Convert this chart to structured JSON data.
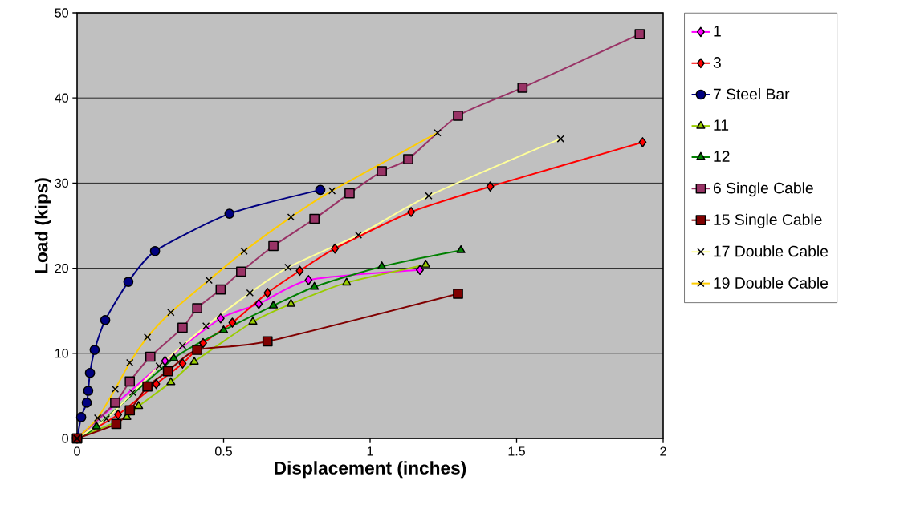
{
  "chart_data": {
    "type": "line",
    "xlabel": "Displacement (inches)",
    "ylabel": "Load (kips)",
    "xlim": [
      0,
      2
    ],
    "ylim": [
      0,
      50
    ],
    "xticks": [
      0,
      0.5,
      1,
      1.5,
      2
    ],
    "yticks": [
      0,
      10,
      20,
      30,
      40,
      50
    ],
    "grid": "y",
    "legend": "right",
    "series": [
      {
        "name": "1",
        "color": "#ff00ff",
        "marker": "diamond",
        "x": [
          0,
          0.3,
          0.49,
          0.62,
          0.79,
          1.17
        ],
        "values": [
          0,
          9.1,
          14.1,
          15.8,
          18.6,
          19.8
        ]
      },
      {
        "name": "3",
        "color": "#ff0000",
        "marker": "diamond",
        "x": [
          0,
          0.14,
          0.27,
          0.36,
          0.43,
          0.53,
          0.65,
          0.76,
          0.88,
          1.14,
          1.41,
          1.93
        ],
        "values": [
          0,
          2.8,
          6.4,
          8.8,
          11.2,
          13.6,
          17.1,
          19.7,
          22.3,
          26.6,
          29.6,
          34.8
        ]
      },
      {
        "name": "7 Steel Bar",
        "color": "#000080",
        "marker": "circle",
        "x": [
          0,
          0.014,
          0.033,
          0.038,
          0.044,
          0.06,
          0.096,
          0.175,
          0.266,
          0.52,
          0.83
        ],
        "values": [
          0,
          2.5,
          4.2,
          5.6,
          7.7,
          10.4,
          13.9,
          18.4,
          22.0,
          26.4,
          29.2
        ]
      },
      {
        "name": "11",
        "color": "#99cc00",
        "marker": "triangle",
        "x": [
          0,
          0.17,
          0.21,
          0.32,
          0.4,
          0.6,
          0.73,
          0.92,
          1.19
        ],
        "values": [
          0,
          2.5,
          3.8,
          6.6,
          9.0,
          13.7,
          15.8,
          18.3,
          20.4
        ]
      },
      {
        "name": "12",
        "color": "#008000",
        "marker": "triangle",
        "x": [
          0,
          0.066,
          0.33,
          0.5,
          0.67,
          0.81,
          1.04,
          1.31
        ],
        "values": [
          0,
          1.4,
          9.4,
          12.7,
          15.6,
          17.8,
          20.2,
          22.1
        ]
      },
      {
        "name": "6 Single Cable",
        "color": "#993366",
        "marker": "square",
        "x": [
          0,
          0.13,
          0.18,
          0.25,
          0.36,
          0.41,
          0.49,
          0.56,
          0.67,
          0.81,
          0.93,
          1.04,
          1.13,
          1.3,
          1.52,
          1.92
        ],
        "values": [
          0,
          4.2,
          6.7,
          9.6,
          13.0,
          15.3,
          17.5,
          19.6,
          22.6,
          25.8,
          28.8,
          31.4,
          32.8,
          37.9,
          41.2,
          47.5
        ]
      },
      {
        "name": "15 Single Cable",
        "color": "#800000",
        "marker": "square",
        "x": [
          0,
          0.134,
          0.18,
          0.24,
          0.31,
          0.41,
          0.65,
          1.3
        ],
        "values": [
          0,
          1.7,
          3.3,
          6.1,
          7.9,
          10.4,
          11.4,
          17.0
        ]
      },
      {
        "name": "17 Double Cable",
        "color": "#ffff99",
        "marker": "cross",
        "x": [
          0,
          0.1,
          0.19,
          0.28,
          0.36,
          0.44,
          0.59,
          0.72,
          0.96,
          1.2,
          1.65
        ],
        "values": [
          0,
          2.3,
          5.4,
          8.5,
          10.9,
          13.2,
          17.1,
          20.1,
          23.9,
          28.5,
          35.2
        ]
      },
      {
        "name": "19 Double Cable",
        "color": "#ffcc00",
        "marker": "cross",
        "x": [
          0,
          0.07,
          0.13,
          0.18,
          0.24,
          0.32,
          0.45,
          0.57,
          0.73,
          0.87,
          1.23
        ],
        "values": [
          0,
          2.4,
          5.8,
          8.9,
          11.9,
          14.8,
          18.6,
          22.0,
          26.0,
          29.1,
          35.9
        ]
      }
    ]
  }
}
